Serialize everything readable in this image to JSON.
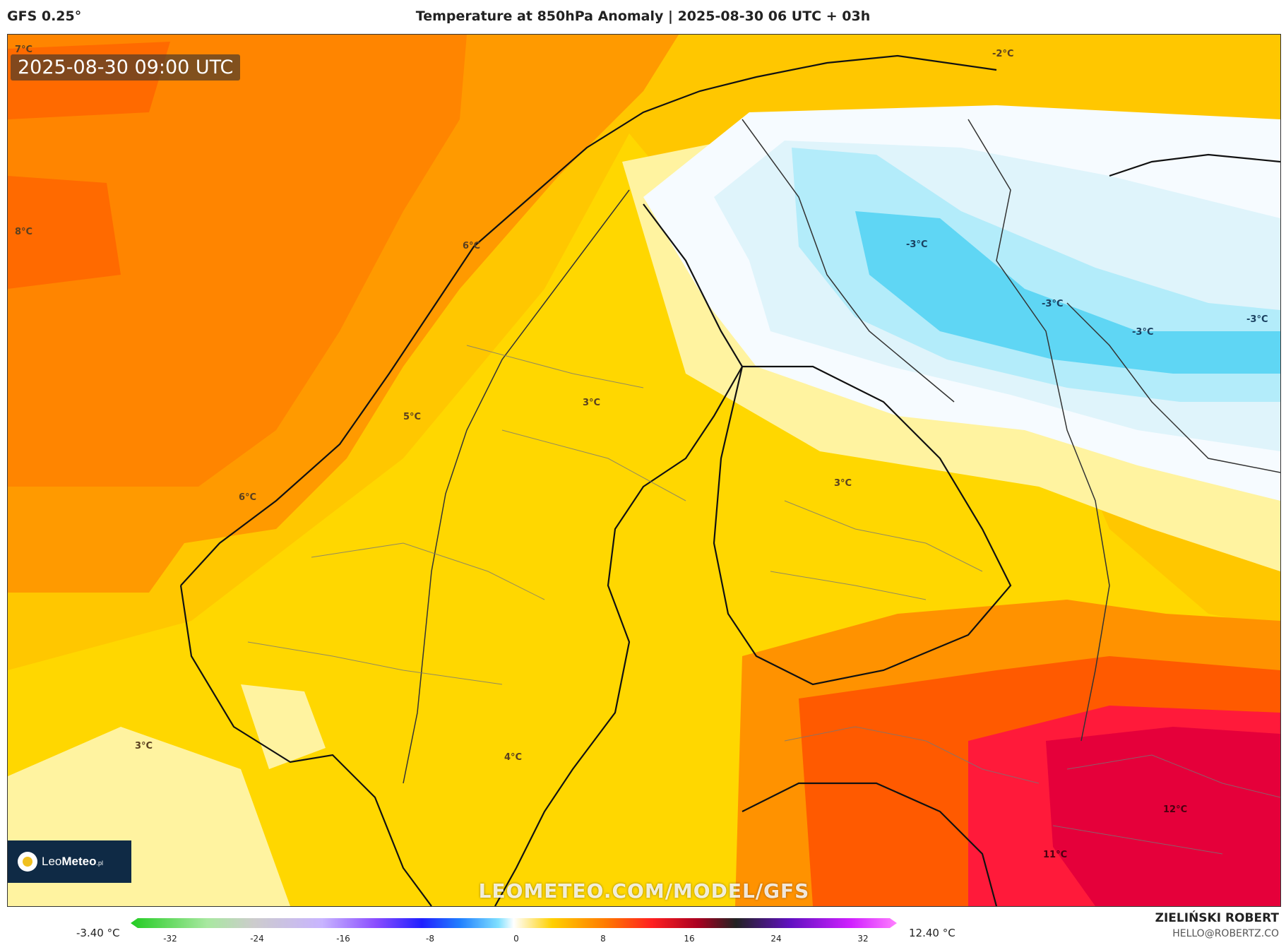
{
  "header": {
    "model": "GFS 0.25°",
    "title": "Temperature at 850hPa Anomaly | 2025-08-30 06 UTC + 03h"
  },
  "map": {
    "timestamp": "2025-08-30 09:00 UTC",
    "watermark": "LEOMETEO.COM/MODEL/GFS",
    "labels": [
      {
        "text": "7°C"
      },
      {
        "text": "8°C"
      },
      {
        "text": "6°C"
      },
      {
        "text": "3°C"
      },
      {
        "text": "5°C"
      },
      {
        "text": "6°C"
      },
      {
        "text": "3°C"
      },
      {
        "text": "4°C"
      },
      {
        "text": "3°C"
      },
      {
        "text": "-3°C"
      },
      {
        "text": "-3°C"
      },
      {
        "text": "-3°C"
      },
      {
        "text": "-3°C"
      },
      {
        "text": "-2°C"
      },
      {
        "text": "12°C"
      },
      {
        "text": "11°C"
      }
    ]
  },
  "logo": {
    "brand_light": "Leo",
    "brand_bold": "Meteo",
    "suffix": ".pl"
  },
  "legend": {
    "min_label": "-3.40 °C",
    "max_label": "12.40 °C",
    "ticks": [
      "-32",
      "-24",
      "-16",
      "-8",
      "0",
      "8",
      "16",
      "24",
      "32"
    ]
  },
  "credits": {
    "author": "ZIELIŃSKI ROBERT",
    "email": "HELLO@ROBERTZ.CO"
  }
}
